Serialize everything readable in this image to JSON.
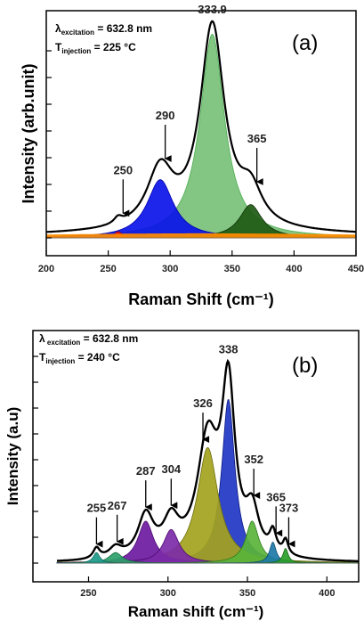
{
  "chart_data": [
    {
      "type": "area",
      "panel_label": "(a)",
      "info": {
        "line1_symbol": "λ",
        "line1_sub": "excitation",
        "line1_value": " = 632.8 nm",
        "line2_symbol": "T",
        "line2_sub": "injection",
        "line2_value": " = 225 °C"
      },
      "xlabel": "Raman Shift (cm⁻¹)",
      "ylabel": "Intensity (arb.unit)",
      "xlim": [
        200,
        450
      ],
      "ylim": [
        0,
        1.05
      ],
      "xticks": [
        200,
        250,
        300,
        350,
        400,
        450
      ],
      "grid": false,
      "peak_annotations": [
        {
          "label": "250",
          "x": 262,
          "arrow": true
        },
        {
          "label": "290",
          "x": 296,
          "arrow": true
        },
        {
          "label": "333.9",
          "x": 334,
          "arrow": false
        },
        {
          "label": "365",
          "x": 370,
          "arrow": true
        }
      ],
      "components": [
        {
          "center": 334,
          "width": 12,
          "height": 0.98,
          "color": "#78c078",
          "edge": "#4caf50"
        },
        {
          "center": 292,
          "width": 13,
          "height": 0.28,
          "color": "#0a14e8",
          "edge": "#0000aa"
        },
        {
          "center": 365,
          "width": 11,
          "height": 0.16,
          "color": "#1f5a14",
          "edge": "#0d3008"
        },
        {
          "center": 258,
          "width": 4,
          "height": 0.03,
          "color": "#e8161e",
          "edge": "#aa0000"
        },
        {
          "center": 325,
          "width": 200,
          "height": 0.02,
          "color": "#ff8c00",
          "edge": "#ff8c00"
        }
      ],
      "envelope": {
        "color": "#000000"
      }
    },
    {
      "type": "area",
      "panel_label": "(b)",
      "info": {
        "line1_symbol": "λ",
        "line1_sub": " excitation",
        "line1_value": " = 632.8 nm",
        "line2_symbol": "T",
        "line2_sub": "injection",
        "line2_value": " = 240 °C"
      },
      "xlabel": "Raman shift (cm⁻¹)",
      "ylabel": "Intensity (a.u)",
      "xlim": [
        215,
        420
      ],
      "ylim": [
        0,
        1.06
      ],
      "xticks": [
        250,
        300,
        350,
        400
      ],
      "grid": false,
      "peak_annotations": [
        {
          "label": "255",
          "x": 255,
          "arrow": true
        },
        {
          "label": "267",
          "x": 268,
          "arrow": true
        },
        {
          "label": "287",
          "x": 286,
          "arrow": true
        },
        {
          "label": "304",
          "x": 302,
          "arrow": true
        },
        {
          "label": "326",
          "x": 322,
          "arrow": true
        },
        {
          "label": "338",
          "x": 338,
          "arrow": false
        },
        {
          "label": "352",
          "x": 354,
          "arrow": true
        },
        {
          "label": "365",
          "x": 368,
          "arrow": true
        },
        {
          "label": "373",
          "x": 376,
          "arrow": true
        }
      ],
      "components": [
        {
          "center": 338,
          "width": 5,
          "height": 0.78,
          "color": "#1f36c4",
          "edge": "#0a1a80"
        },
        {
          "center": 325,
          "width": 8,
          "height": 0.55,
          "color": "#a3a31e",
          "edge": "#6e6e10"
        },
        {
          "center": 286,
          "width": 6,
          "height": 0.2,
          "color": "#6e1aa0",
          "edge": "#4a0a70"
        },
        {
          "center": 302,
          "width": 6,
          "height": 0.16,
          "color": "#7c2aa8",
          "edge": "#4a0a70"
        },
        {
          "center": 353,
          "width": 5,
          "height": 0.2,
          "color": "#5ab43a",
          "edge": "#2f7a1e"
        },
        {
          "center": 366,
          "width": 2.5,
          "height": 0.1,
          "color": "#1d7aa8",
          "edge": "#0c4a70"
        },
        {
          "center": 374,
          "width": 2,
          "height": 0.07,
          "color": "#2aa02a",
          "edge": "#136813"
        },
        {
          "center": 267,
          "width": 5,
          "height": 0.05,
          "color": "#2ea06a",
          "edge": "#146c40"
        },
        {
          "center": 255,
          "width": 2.5,
          "height": 0.05,
          "color": "#1e9a8a",
          "edge": "#0c6a5a"
        }
      ],
      "envelope": {
        "color": "#000000"
      }
    }
  ]
}
